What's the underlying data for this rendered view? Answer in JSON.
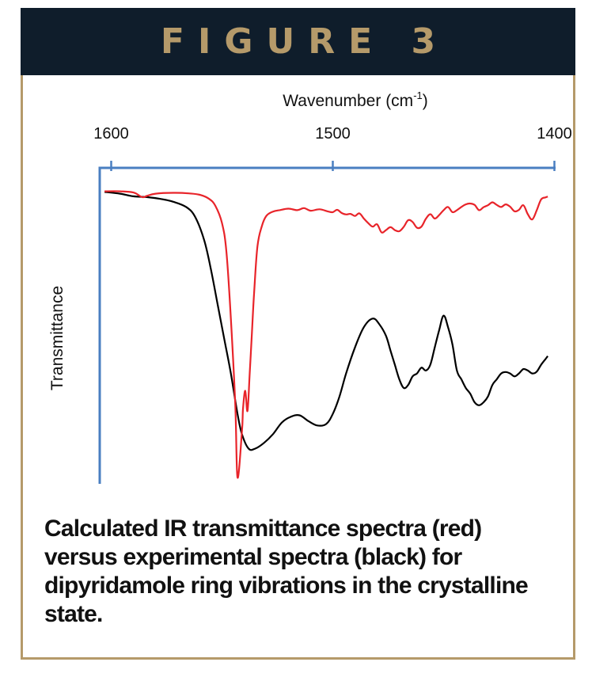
{
  "header": {
    "title": "FIGURE 3"
  },
  "caption": "Calculated IR transmittance spectra (red) versus experimental spectra (black) for dipyridamole ring vibrations in the crystalline state.",
  "colors": {
    "header_bg": "#0f1d2b",
    "accent_gold": "#b59a6a",
    "axis_blue": "#4a7fc1",
    "calculated": "#e8242a",
    "experimental": "#000000"
  },
  "chart_data": {
    "type": "line",
    "xlabel": "Wavenumber (cm-1)",
    "xlabel_main": "Wavenumber (cm",
    "xlabel_sup": "-1",
    "xlabel_close": ")",
    "ylabel": "Transmittance",
    "xlim": [
      1600,
      1400
    ],
    "xticks": [
      "1600",
      "1500",
      "1400"
    ],
    "x_reversed": true,
    "y_ticks_shown": false,
    "ylim": [
      0,
      100
    ],
    "series": [
      {
        "color": "#e8242a",
        "x": [
          1603,
          1596,
          1590,
          1586,
          1584,
          1580,
          1572,
          1565,
          1560,
          1556,
          1553,
          1550,
          1548,
          1546,
          1544,
          1543,
          1541,
          1540.5,
          1539.5,
          1538.5,
          1537.5,
          1536.5,
          1535.5,
          1534,
          1532,
          1530,
          1527,
          1524,
          1520,
          1516,
          1513,
          1510,
          1506,
          1502,
          1500,
          1498,
          1496,
          1494,
          1492,
          1490,
          1488,
          1486,
          1484,
          1482,
          1480,
          1478,
          1476,
          1474,
          1472,
          1470,
          1468,
          1466,
          1464,
          1462,
          1460,
          1458,
          1456,
          1454,
          1452,
          1450,
          1448,
          1446,
          1444,
          1442,
          1440,
          1438,
          1436,
          1434,
          1432,
          1430,
          1428,
          1426,
          1424,
          1422,
          1420,
          1418,
          1416,
          1414,
          1412,
          1410,
          1408,
          1406,
          1404,
          1403
        ],
        "y": [
          99,
          99,
          98.6,
          97,
          97.4,
          98.2,
          98.5,
          98.3,
          97.8,
          96.5,
          94,
          88,
          78,
          55,
          25,
          0,
          16,
          24,
          30,
          23,
          36,
          50,
          64,
          80,
          87,
          90.5,
          92,
          92.5,
          93,
          92.5,
          93.2,
          92.3,
          92.8,
          92,
          91.8,
          92.6,
          91.5,
          91,
          91.2,
          90.5,
          91.4,
          89.6,
          88,
          86.8,
          87.6,
          84.8,
          85.6,
          86.6,
          85.6,
          85.2,
          86.7,
          89,
          88.4,
          86.4,
          86.8,
          89.5,
          91.1,
          89.6,
          90.8,
          92.5,
          93.6,
          91.8,
          92.5,
          93.6,
          94.5,
          94.8,
          94.3,
          92.5,
          93.5,
          94.2,
          95.2,
          94.3,
          93.6,
          94.5,
          93.7,
          92.1,
          92.6,
          94.2,
          91.1,
          89.3,
          92.4,
          96.2,
          96.9,
          97.2
        ]
      },
      {
        "color": "#000000",
        "x": [
          1603,
          1596,
          1590,
          1584,
          1578,
          1572,
          1566,
          1562,
          1558,
          1555,
          1552,
          1549,
          1546,
          1543,
          1541,
          1538,
          1535,
          1531,
          1527,
          1523,
          1519,
          1515,
          1511,
          1507,
          1503,
          1500,
          1497,
          1494,
          1490,
          1486,
          1482,
          1479,
          1476,
          1474,
          1472,
          1470,
          1468,
          1466,
          1464,
          1462,
          1460,
          1458,
          1456,
          1454,
          1452,
          1450,
          1448,
          1446,
          1444,
          1442,
          1440,
          1438,
          1436,
          1434,
          1432,
          1430,
          1428,
          1426,
          1424,
          1422,
          1420,
          1418,
          1416,
          1414,
          1412,
          1410,
          1408,
          1406,
          1404,
          1403
        ],
        "y": [
          98.8,
          98.2,
          97.3,
          97,
          96.4,
          95.4,
          93.5,
          90,
          82,
          72,
          60,
          48,
          36,
          22,
          15,
          10,
          10,
          12,
          15,
          19,
          21,
          21.5,
          19.5,
          18,
          18.5,
          22,
          28,
          36,
          45,
          52,
          55,
          53,
          49,
          44,
          39,
          34,
          31,
          32,
          35,
          36,
          38,
          37,
          39,
          45,
          51,
          56,
          52,
          46,
          37,
          34,
          31,
          29,
          26,
          25,
          26,
          28,
          32,
          34,
          36,
          36.5,
          36,
          35,
          36,
          37.5,
          37,
          36,
          36.6,
          39,
          41,
          42
        ]
      }
    ]
  }
}
